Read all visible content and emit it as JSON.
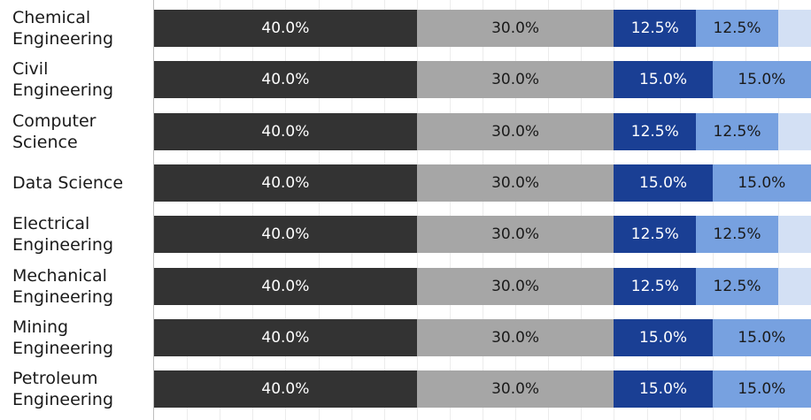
{
  "chart_data": {
    "type": "bar",
    "orientation": "horizontal",
    "stacked": true,
    "title": "",
    "xlabel": "",
    "ylabel": "",
    "xlim": [
      0,
      100
    ],
    "grid": true,
    "legend": "none",
    "categories": [
      "Chemical Engineering",
      "Civil Engineering",
      "Computer Science",
      "Data Science",
      "Electrical Engineering",
      "Mechanical Engineering",
      "Mining Engineering",
      "Petroleum Engineering"
    ],
    "series": [
      {
        "color": "#333333",
        "text_color": "#ffffff",
        "values": [
          40,
          40,
          40,
          40,
          40,
          40,
          40,
          40
        ],
        "labels": [
          "40.0%",
          "40.0%",
          "40.0%",
          "40.0%",
          "40.0%",
          "40.0%",
          "40.0%",
          "40.0%"
        ]
      },
      {
        "color": "#a6a6a6",
        "text_color": "#1a1a1a",
        "values": [
          30,
          30,
          30,
          30,
          30,
          30,
          30,
          30
        ],
        "labels": [
          "30.0%",
          "30.0%",
          "30.0%",
          "30.0%",
          "30.0%",
          "30.0%",
          "30.0%",
          "30.0%"
        ]
      },
      {
        "color": "#1a3f94",
        "text_color": "#ffffff",
        "values": [
          12.5,
          15,
          12.5,
          15,
          12.5,
          12.5,
          15,
          15
        ],
        "labels": [
          "12.5%",
          "15.0%",
          "12.5%",
          "15.0%",
          "12.5%",
          "12.5%",
          "15.0%",
          "15.0%"
        ]
      },
      {
        "color": "#77a1e0",
        "text_color": "#1a1a1a",
        "values": [
          12.5,
          15,
          12.5,
          15,
          12.5,
          12.5,
          15,
          15
        ],
        "labels": [
          "12.5%",
          "15.0%",
          "12.5%",
          "15.0%",
          "12.5%",
          "12.5%",
          "15.0%",
          "15.0%"
        ]
      },
      {
        "color": "#d3e0f4",
        "text_color": "#1a1a1a",
        "values": [
          5,
          0,
          5,
          0,
          5,
          5,
          0,
          0
        ],
        "labels": [
          "",
          "",
          "",
          "",
          "",
          "",
          "",
          ""
        ]
      }
    ]
  }
}
